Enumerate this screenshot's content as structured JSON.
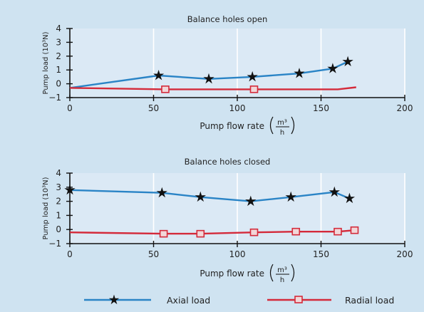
{
  "colors": {
    "background": "#cfe3f1",
    "plot_background": "#dbe9f5",
    "grid": "#ffffff",
    "axis": "#111111",
    "axial": "#2a84c6",
    "radial": "#d42a3a"
  },
  "legend": {
    "axial_label": "Axial load",
    "radial_label": "Radial load"
  },
  "chart_data": [
    {
      "type": "line",
      "title": "Balance holes open",
      "xlabel": "Pump flow rate",
      "xunit_numerator": "m³",
      "xunit_denominator": "h",
      "ylabel": "Pump load (10³N)",
      "xlim": [
        0,
        200
      ],
      "ylim": [
        -1,
        4
      ],
      "xticks": [
        0,
        50,
        100,
        150,
        200
      ],
      "yticks": [
        -1,
        0,
        1,
        2,
        3,
        4
      ],
      "grid": true,
      "legend_position": "bottom",
      "series": [
        {
          "name": "Axial load",
          "marker": "star",
          "x": [
            0,
            53,
            83,
            109,
            137,
            157,
            166
          ],
          "y": [
            -0.3,
            0.6,
            0.35,
            0.5,
            0.75,
            1.1,
            1.6
          ],
          "marker_from": 1
        },
        {
          "name": "Radial load",
          "marker": "square",
          "x": [
            0,
            57,
            110,
            160,
            171
          ],
          "y": [
            -0.3,
            -0.4,
            -0.4,
            -0.4,
            -0.25
          ],
          "marker_indices": [
            1,
            2
          ]
        }
      ]
    },
    {
      "type": "line",
      "title": "Balance holes closed",
      "xlabel": "Pump flow rate",
      "xunit_numerator": "m³",
      "xunit_denominator": "h",
      "ylabel": "Pump load (10³N)",
      "xlim": [
        0,
        200
      ],
      "ylim": [
        -1,
        4
      ],
      "xticks": [
        0,
        50,
        100,
        150,
        200
      ],
      "yticks": [
        -1,
        0,
        1,
        2,
        3,
        4
      ],
      "grid": true,
      "legend_position": "bottom",
      "series": [
        {
          "name": "Axial load",
          "marker": "star",
          "x": [
            0,
            55,
            78,
            108,
            132,
            158,
            167
          ],
          "y": [
            2.8,
            2.6,
            2.3,
            2.0,
            2.3,
            2.65,
            2.2
          ],
          "marker_from": 0
        },
        {
          "name": "Radial load",
          "marker": "square",
          "x": [
            0,
            56,
            78,
            110,
            135,
            160,
            170
          ],
          "y": [
            -0.2,
            -0.3,
            -0.3,
            -0.2,
            -0.15,
            -0.15,
            -0.05
          ],
          "marker_indices": [
            1,
            2,
            3,
            4,
            5,
            6
          ]
        }
      ]
    }
  ]
}
